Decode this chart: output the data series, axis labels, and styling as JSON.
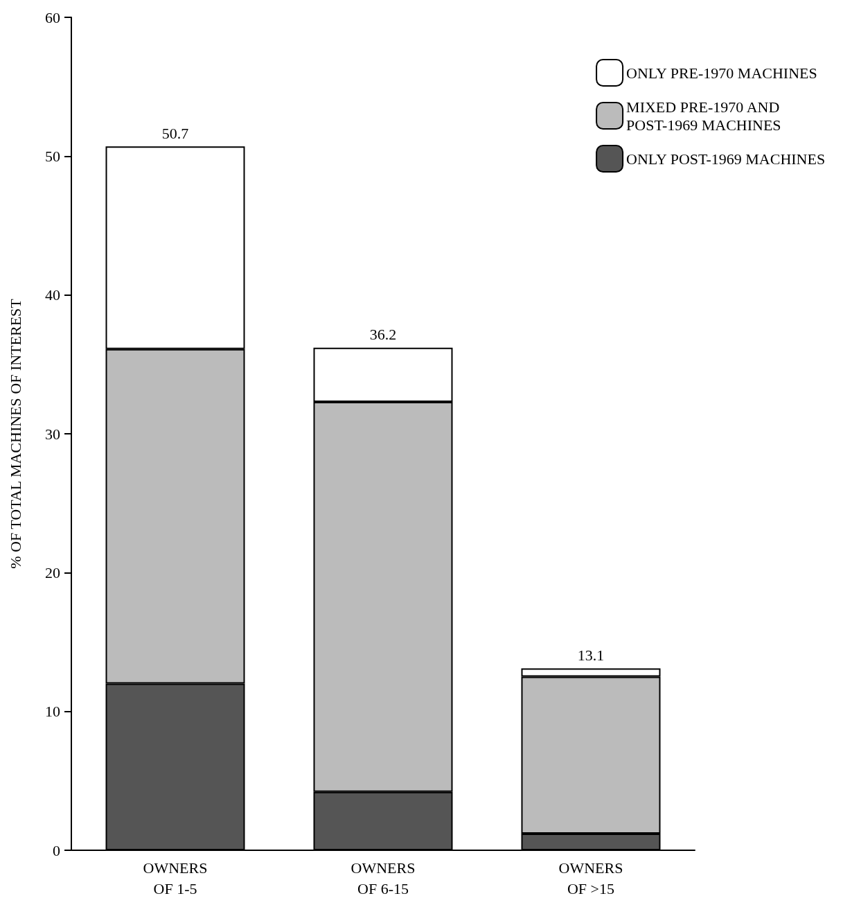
{
  "chart_data": {
    "type": "bar",
    "stacked": true,
    "ylabel": "% OF TOTAL MACHINES OF INTEREST",
    "categories": [
      "OWNERS\nOF 1-5",
      "OWNERS\nOF 6-15",
      "OWNERS\nOF >15"
    ],
    "series": [
      {
        "name": "ONLY POST-1969 MACHINES",
        "color": "#555555",
        "values": [
          12.0,
          4.2,
          1.2
        ]
      },
      {
        "name": "MIXED PRE-1970 AND\nPOST-1969 MACHINES",
        "color": "#bbbbbb",
        "values": [
          24.1,
          28.1,
          11.3
        ]
      },
      {
        "name": "ONLY PRE-1970 MACHINES",
        "color": "#ffffff",
        "values": [
          14.6,
          3.9,
          0.6
        ]
      }
    ],
    "totals": [
      "50.7",
      "36.2",
      "13.1"
    ],
    "ylim": [
      0,
      60
    ],
    "yticks": [
      0,
      10,
      20,
      30,
      40,
      50,
      60
    ],
    "grid": false,
    "legend": "top right"
  }
}
